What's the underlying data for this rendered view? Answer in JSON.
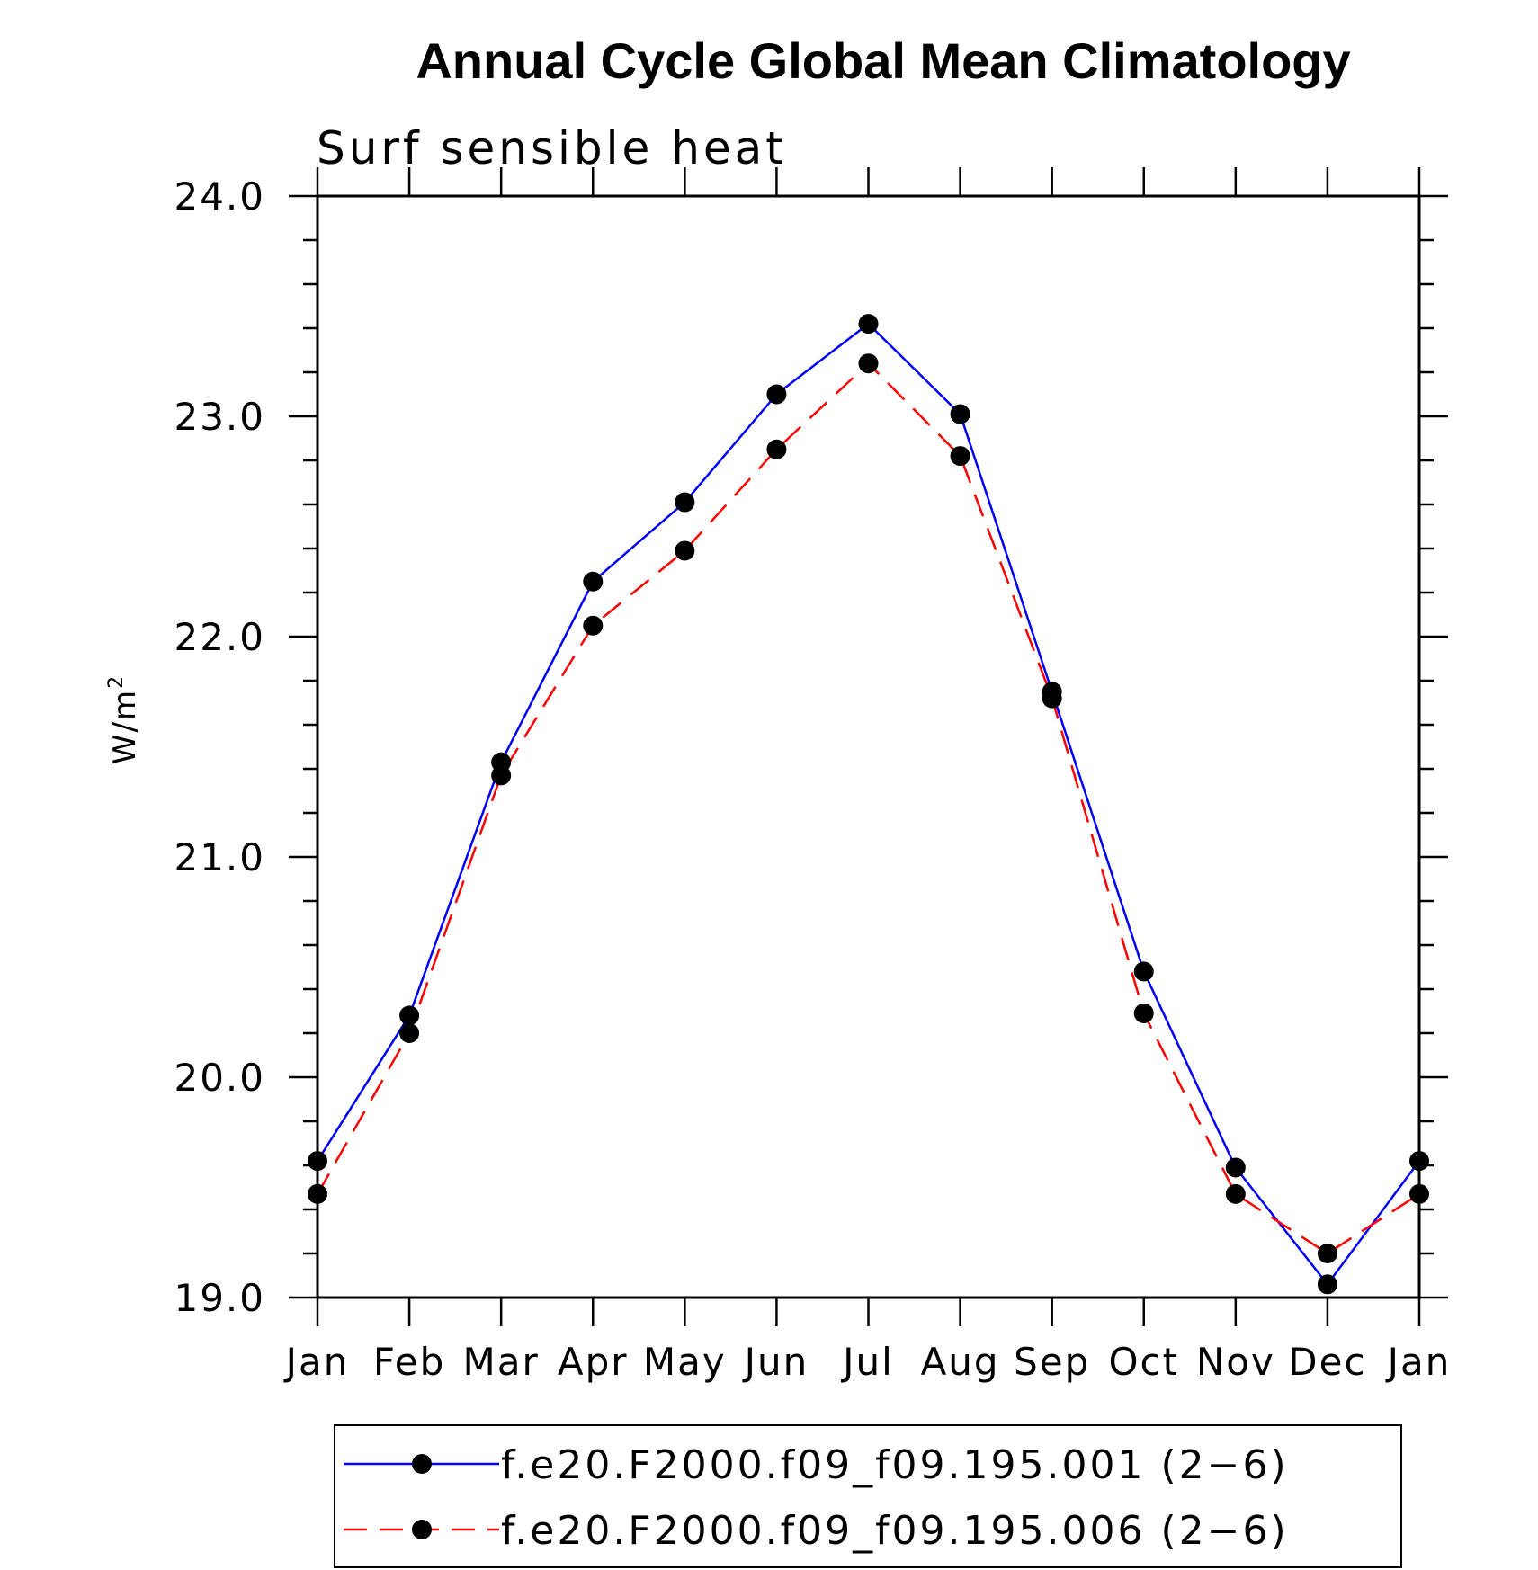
{
  "chart_data": {
    "type": "line",
    "title": "Annual Cycle Global Mean Climatology",
    "subtitle": "Surf sensible heat",
    "ylabel": "W/m",
    "ylabel_superscript": "2",
    "xlabel": "",
    "categories": [
      "Jan",
      "Feb",
      "Mar",
      "Apr",
      "May",
      "Jun",
      "Jul",
      "Aug",
      "Sep",
      "Oct",
      "Nov",
      "Dec",
      "Jan"
    ],
    "ylim": [
      19.0,
      24.0
    ],
    "yticks": [
      "19.0",
      "20.0",
      "21.0",
      "22.0",
      "23.0",
      "24.0"
    ],
    "grid": false,
    "legend_position": "bottom",
    "series": [
      {
        "name": "f.e20.F2000.f09_f09.195.001 (2−6)",
        "color": "#0000ff",
        "line_style": "solid",
        "values": [
          19.62,
          20.28,
          21.43,
          22.25,
          22.61,
          23.1,
          23.42,
          23.01,
          21.75,
          20.48,
          19.59,
          19.06,
          19.62
        ]
      },
      {
        "name": "f.e20.F2000.f09_f09.195.006 (2−6)",
        "color": "#ff0000",
        "line_style": "dashed",
        "values": [
          19.47,
          20.2,
          21.37,
          22.05,
          22.39,
          22.85,
          23.24,
          22.82,
          21.72,
          20.29,
          19.47,
          19.2,
          19.47
        ]
      }
    ]
  }
}
